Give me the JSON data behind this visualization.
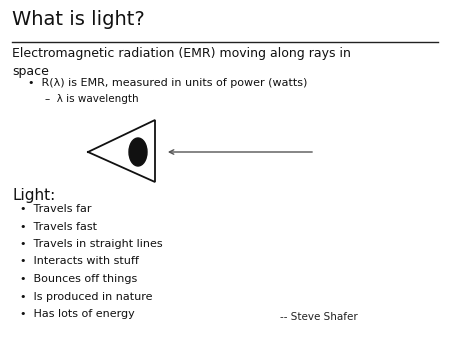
{
  "title": "What is light?",
  "background_color": "#ffffff",
  "title_fontsize": 14,
  "subtitle": "Electromagnetic radiation (EMR) moving along rays in\nspace",
  "subtitle_fontsize": 9,
  "bullet1": "R(λ) is EMR, measured in units of power (watts)",
  "bullet1_fontsize": 8,
  "bullet2": "–  λ is wavelength",
  "bullet2_fontsize": 7.5,
  "light_label": "Light:",
  "light_label_fontsize": 11,
  "light_items": [
    "Travels far",
    "Travels fast",
    "Travels in straight lines",
    "Interacts with stuff",
    "Bounces off things",
    "Is produced in nature",
    "Has lots of energy"
  ],
  "light_items_fontsize": 8,
  "attribution": "-- Steve Shafer",
  "attribution_fontsize": 7.5,
  "text_color": "#111111"
}
